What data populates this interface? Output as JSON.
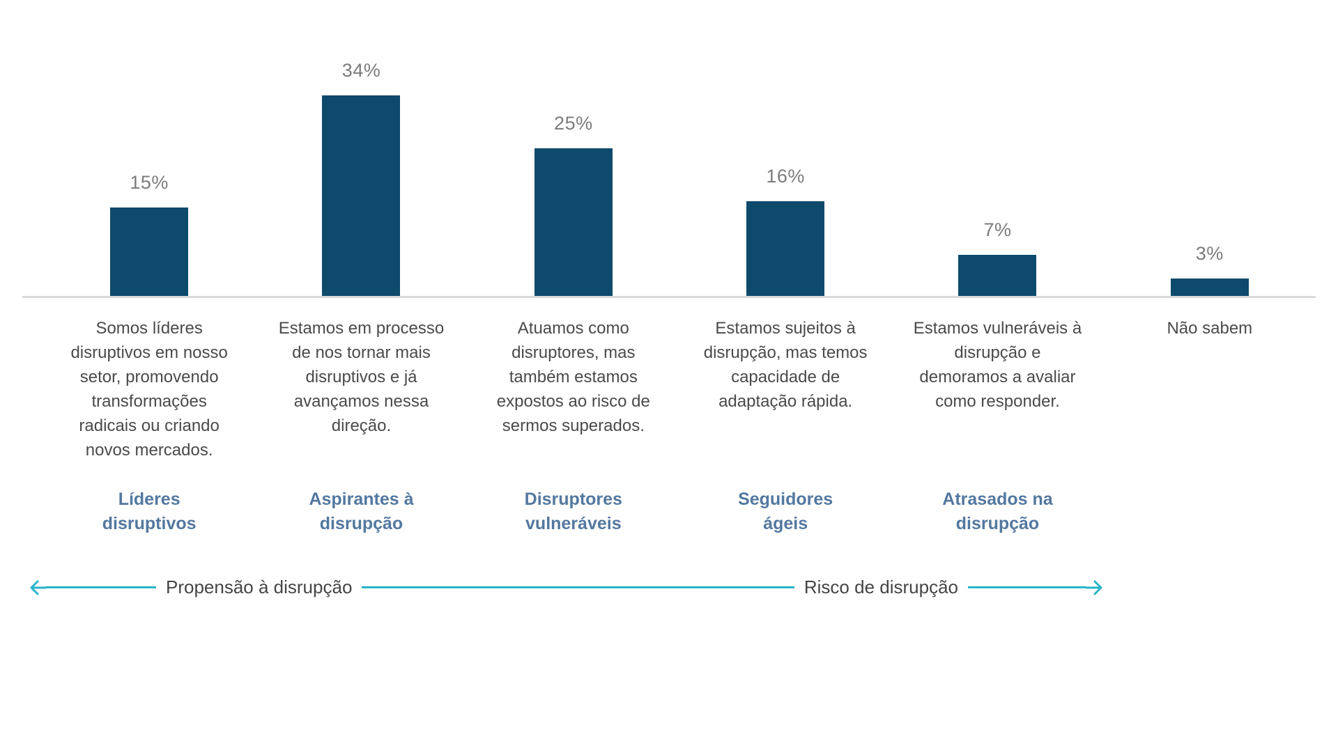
{
  "chart_data": {
    "type": "bar",
    "title": "",
    "unit": "%",
    "values": [
      15,
      34,
      25,
      16,
      7,
      3
    ],
    "labels": [
      "15%",
      "34%",
      "25%",
      "16%",
      "7%",
      "3%"
    ],
    "categories": [
      "Somos líderes disruptivos em nosso setor, promovendo transformações radicais ou criando novos mercados.",
      "Estamos em processo de nos tornar mais disruptivos e já avançamos nessa direção.",
      "Atuamos como disruptores, mas também estamos expostos ao risco de sermos superados.",
      "Estamos sujeitos à disrupção, mas temos capacidade de adaptação rápida.",
      "Estamos vulneráveis à disrupção e demoramos a avaliar como responder.",
      "Não sabem"
    ],
    "group_labels": [
      "Líderes\ndisruptivos",
      "Aspirantes à\ndisrupção",
      "Disruptores\nvulneráveis",
      "Seguidores\nágeis",
      "Atrasados na\ndisrupção",
      ""
    ],
    "ylim": [
      0,
      40
    ],
    "grid": false,
    "legend": "none",
    "xlabel": "",
    "ylabel": "",
    "bar_color": "#0e4a6c",
    "value_label_color": "#7c7c7c",
    "category_color": "#4a4a4a",
    "group_label_color": "#53789f",
    "baseline_color": "#d9d9d9"
  },
  "axis_arrow": {
    "left_label": "Propensão à disrupção",
    "right_label": "Risco de disrupção",
    "color": "#29b4c9"
  }
}
